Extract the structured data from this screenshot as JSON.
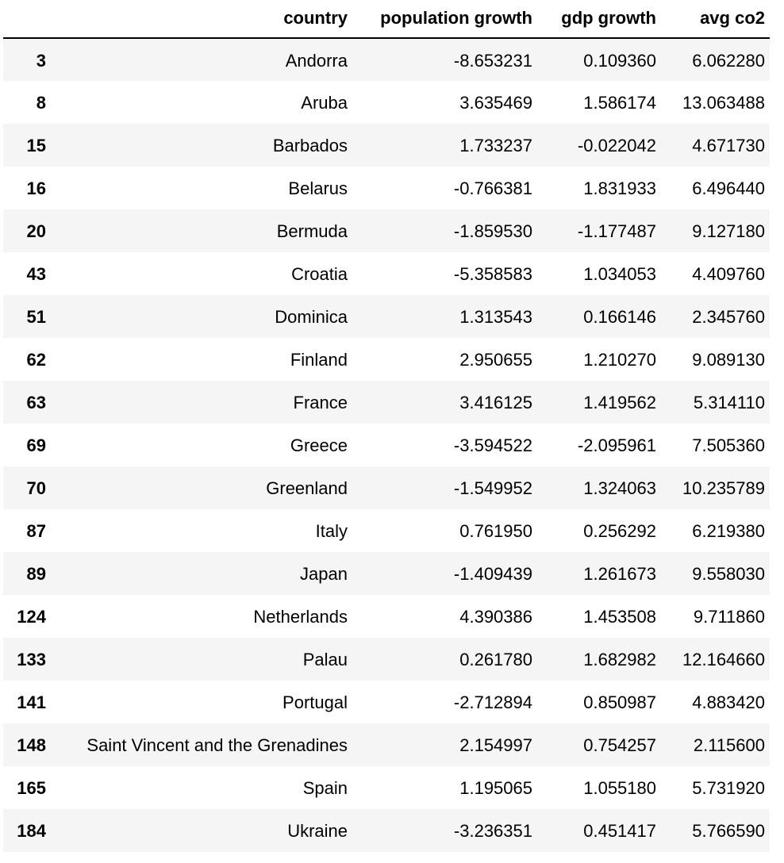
{
  "table": {
    "columns": [
      "",
      "country",
      "population growth",
      "gdp growth",
      "avg co2"
    ],
    "rows": [
      {
        "index": "3",
        "country": "Andorra",
        "population_growth": "-8.653231",
        "gdp_growth": "0.109360",
        "avg_co2": "6.062280"
      },
      {
        "index": "8",
        "country": "Aruba",
        "population_growth": "3.635469",
        "gdp_growth": "1.586174",
        "avg_co2": "13.063488"
      },
      {
        "index": "15",
        "country": "Barbados",
        "population_growth": "1.733237",
        "gdp_growth": "-0.022042",
        "avg_co2": "4.671730"
      },
      {
        "index": "16",
        "country": "Belarus",
        "population_growth": "-0.766381",
        "gdp_growth": "1.831933",
        "avg_co2": "6.496440"
      },
      {
        "index": "20",
        "country": "Bermuda",
        "population_growth": "-1.859530",
        "gdp_growth": "-1.177487",
        "avg_co2": "9.127180"
      },
      {
        "index": "43",
        "country": "Croatia",
        "population_growth": "-5.358583",
        "gdp_growth": "1.034053",
        "avg_co2": "4.409760"
      },
      {
        "index": "51",
        "country": "Dominica",
        "population_growth": "1.313543",
        "gdp_growth": "0.166146",
        "avg_co2": "2.345760"
      },
      {
        "index": "62",
        "country": "Finland",
        "population_growth": "2.950655",
        "gdp_growth": "1.210270",
        "avg_co2": "9.089130"
      },
      {
        "index": "63",
        "country": "France",
        "population_growth": "3.416125",
        "gdp_growth": "1.419562",
        "avg_co2": "5.314110"
      },
      {
        "index": "69",
        "country": "Greece",
        "population_growth": "-3.594522",
        "gdp_growth": "-2.095961",
        "avg_co2": "7.505360"
      },
      {
        "index": "70",
        "country": "Greenland",
        "population_growth": "-1.549952",
        "gdp_growth": "1.324063",
        "avg_co2": "10.235789"
      },
      {
        "index": "87",
        "country": "Italy",
        "population_growth": "0.761950",
        "gdp_growth": "0.256292",
        "avg_co2": "6.219380"
      },
      {
        "index": "89",
        "country": "Japan",
        "population_growth": "-1.409439",
        "gdp_growth": "1.261673",
        "avg_co2": "9.558030"
      },
      {
        "index": "124",
        "country": "Netherlands",
        "population_growth": "4.390386",
        "gdp_growth": "1.453508",
        "avg_co2": "9.711860"
      },
      {
        "index": "133",
        "country": "Palau",
        "population_growth": "0.261780",
        "gdp_growth": "1.682982",
        "avg_co2": "12.164660"
      },
      {
        "index": "141",
        "country": "Portugal",
        "population_growth": "-2.712894",
        "gdp_growth": "0.850987",
        "avg_co2": "4.883420"
      },
      {
        "index": "148",
        "country": "Saint Vincent and the Grenadines",
        "population_growth": "2.154997",
        "gdp_growth": "0.754257",
        "avg_co2": "2.115600"
      },
      {
        "index": "165",
        "country": "Spain",
        "population_growth": "1.195065",
        "gdp_growth": "1.055180",
        "avg_co2": "5.731920"
      },
      {
        "index": "184",
        "country": "Ukraine",
        "population_growth": "-3.236351",
        "gdp_growth": "0.451417",
        "avg_co2": "5.766590"
      }
    ]
  },
  "colors": {
    "row_stripe": "#f5f5f5",
    "row_plain": "#ffffff",
    "header_rule": "#000000",
    "text": "#000000"
  }
}
